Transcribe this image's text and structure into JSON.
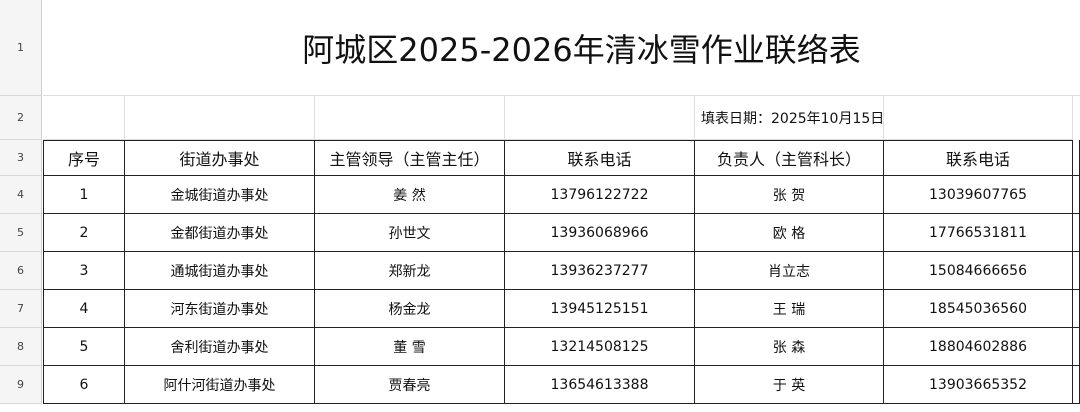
{
  "title": "阿城区2025-2026年清冰雪作业联络表",
  "fill_date": "填表日期：2025年10月15日",
  "row_numbers": [
    "1",
    "2",
    "3",
    "4",
    "5",
    "6",
    "7",
    "8",
    "9"
  ],
  "headers": [
    "序号",
    "街道办事处",
    "主管领导（主管主任）",
    "联系电话",
    "负责人（主管科长）",
    "联系电话"
  ],
  "rows": [
    [
      "1",
      "金城街道办事处",
      "姜 然",
      "13796122722",
      "张 贺",
      "13039607765"
    ],
    [
      "2",
      "金都街道办事处",
      "孙世文",
      "13936068966",
      "欧 格",
      "17766531811"
    ],
    [
      "3",
      "通城街道办事处",
      "郑新龙",
      "13936237277",
      "肖立志",
      "15084666656"
    ],
    [
      "4",
      "河东街道办事处",
      "杨金龙",
      "13945125151",
      "王 瑞",
      "18545036560"
    ],
    [
      "5",
      "舍利街道办事处",
      "董 雪",
      "13214508125",
      "张 森",
      "18804602886"
    ],
    [
      "6",
      "阿什河街道办事处",
      "贾春亮",
      "13654613388",
      "于 英",
      "13903665352"
    ]
  ]
}
